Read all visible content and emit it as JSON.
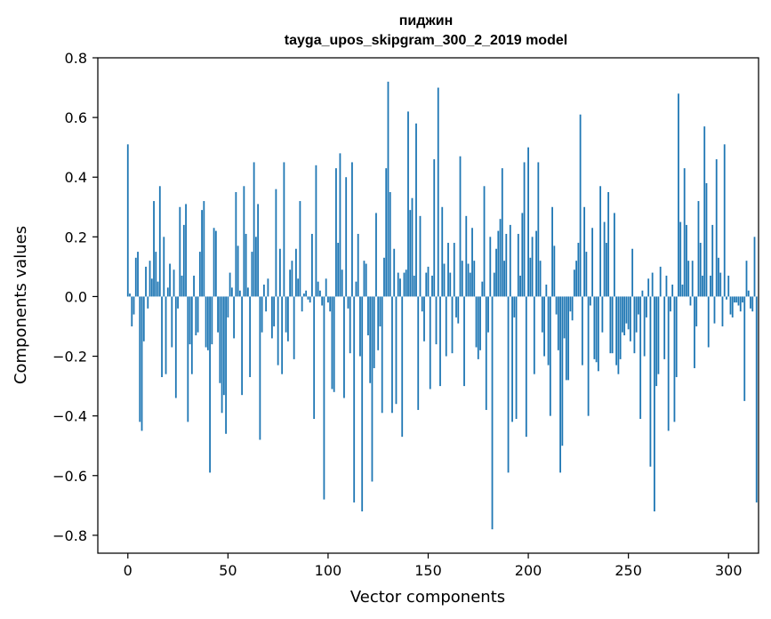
{
  "chart_data": {
    "type": "bar",
    "title": "пиджин",
    "subtitle": "tayga_upos_skipgram_300_2_2019 model",
    "xlabel": "Vector components",
    "ylabel": "Components values",
    "xlim": [
      -15,
      315
    ],
    "ylim": [
      -0.86,
      0.8
    ],
    "x_ticks": [
      0,
      50,
      100,
      150,
      200,
      250,
      300
    ],
    "x_tick_labels": [
      "0",
      "50",
      "100",
      "150",
      "200",
      "250",
      "300"
    ],
    "y_ticks": [
      0.8,
      0.6,
      0.4,
      0.2,
      0.0,
      -0.2,
      -0.4,
      -0.6,
      -0.8
    ],
    "y_tick_labels": [
      "0.8",
      "0.6",
      "0.4",
      "0.2",
      "0.0",
      "−0.2",
      "−0.4",
      "−0.6",
      "−0.8"
    ],
    "bar_color": "#1f77b4",
    "values": [
      0.51,
      0.01,
      -0.1,
      -0.06,
      0.13,
      0.15,
      -0.42,
      -0.45,
      -0.15,
      0.1,
      -0.04,
      0.12,
      0.06,
      0.32,
      0.15,
      0.05,
      0.37,
      -0.27,
      0.2,
      -0.26,
      0.03,
      0.11,
      -0.17,
      0.09,
      -0.34,
      -0.04,
      0.3,
      0.07,
      0.24,
      0.31,
      -0.42,
      -0.16,
      -0.26,
      0.07,
      -0.13,
      -0.12,
      0.15,
      0.29,
      0.32,
      -0.17,
      -0.18,
      -0.59,
      -0.16,
      0.23,
      0.22,
      -0.12,
      -0.29,
      -0.39,
      -0.33,
      -0.46,
      -0.07,
      0.08,
      0.03,
      -0.14,
      0.35,
      0.17,
      0.02,
      -0.33,
      0.37,
      0.21,
      0.03,
      -0.27,
      0.15,
      0.45,
      0.2,
      0.31,
      -0.48,
      -0.12,
      0.04,
      -0.05,
      0.06,
      0.0,
      -0.14,
      -0.1,
      0.36,
      -0.23,
      0.16,
      -0.26,
      0.45,
      -0.12,
      -0.15,
      0.09,
      0.12,
      -0.21,
      0.16,
      0.06,
      0.32,
      -0.05,
      0.01,
      0.02,
      -0.01,
      -0.02,
      0.21,
      -0.41,
      0.44,
      0.05,
      0.02,
      -0.03,
      -0.68,
      0.06,
      -0.02,
      -0.05,
      -0.31,
      -0.32,
      0.43,
      0.18,
      0.48,
      0.09,
      -0.34,
      0.4,
      -0.04,
      -0.19,
      0.45,
      -0.69,
      0.05,
      0.21,
      -0.2,
      -0.72,
      0.12,
      0.11,
      -0.13,
      -0.29,
      -0.62,
      -0.24,
      0.28,
      -0.18,
      -0.1,
      -0.39,
      0.13,
      0.43,
      0.72,
      0.35,
      -0.39,
      0.16,
      -0.36,
      0.08,
      0.06,
      -0.47,
      0.08,
      0.09,
      0.62,
      0.29,
      0.33,
      0.07,
      0.58,
      -0.38,
      0.27,
      -0.05,
      -0.15,
      0.08,
      0.1,
      -0.31,
      0.07,
      0.46,
      -0.16,
      0.7,
      -0.3,
      0.3,
      0.11,
      -0.2,
      0.18,
      0.08,
      -0.19,
      0.18,
      -0.07,
      -0.09,
      0.47,
      0.12,
      -0.3,
      0.27,
      0.11,
      0.08,
      0.23,
      0.12,
      -0.17,
      -0.21,
      -0.18,
      0.05,
      0.37,
      -0.38,
      -0.12,
      0.2,
      -0.78,
      0.08,
      0.16,
      0.22,
      0.26,
      0.43,
      0.12,
      0.21,
      -0.59,
      0.24,
      -0.42,
      -0.07,
      -0.41,
      0.21,
      0.07,
      0.28,
      0.45,
      -0.47,
      0.5,
      0.13,
      0.2,
      -0.26,
      0.22,
      0.45,
      0.12,
      -0.12,
      -0.2,
      0.04,
      -0.23,
      -0.4,
      0.3,
      0.17,
      -0.06,
      -0.18,
      -0.59,
      -0.5,
      -0.14,
      -0.28,
      -0.28,
      -0.05,
      -0.08,
      0.09,
      0.12,
      0.18,
      0.61,
      -0.23,
      0.3,
      0.15,
      -0.4,
      -0.03,
      0.23,
      -0.21,
      -0.22,
      -0.25,
      0.37,
      -0.12,
      0.25,
      0.18,
      0.35,
      -0.19,
      -0.19,
      0.28,
      -0.23,
      -0.26,
      -0.21,
      -0.12,
      -0.13,
      -0.09,
      -0.11,
      -0.15,
      0.16,
      -0.19,
      -0.12,
      -0.06,
      -0.41,
      0.02,
      -0.2,
      -0.07,
      0.06,
      -0.57,
      0.08,
      -0.72,
      -0.3,
      -0.26,
      0.1,
      0.0,
      -0.21,
      0.07,
      -0.45,
      -0.05,
      0.04,
      -0.42,
      -0.27,
      0.68,
      0.25,
      0.04,
      0.43,
      0.24,
      0.12,
      -0.03,
      0.12,
      -0.24,
      -0.1,
      0.32,
      0.18,
      0.07,
      0.57,
      0.38,
      -0.17,
      0.07,
      0.24,
      -0.09,
      0.46,
      0.13,
      0.08,
      -0.1,
      0.51,
      -0.01,
      0.07,
      -0.06,
      -0.07,
      -0.02,
      -0.02,
      -0.03,
      -0.05,
      -0.02,
      -0.35,
      0.12,
      0.02,
      -0.04,
      -0.05,
      0.2,
      -0.69
    ]
  }
}
